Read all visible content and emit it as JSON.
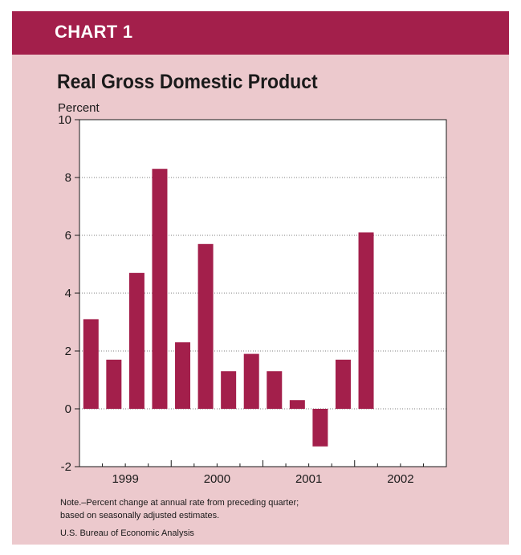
{
  "header": {
    "label": "CHART 1"
  },
  "colors": {
    "banner": "#a31f4b",
    "panel": "#ecc9cd",
    "bar": "#a31f4b"
  },
  "chart_data": {
    "type": "bar",
    "title": "Real Gross Domestic Product",
    "ylabel": "Percent",
    "xlabel": "",
    "ylim": [
      -2,
      10
    ],
    "yticks": [
      -2,
      0,
      2,
      4,
      6,
      8,
      10
    ],
    "grid": true,
    "year_labels": [
      "1999",
      "2000",
      "2001",
      "2002"
    ],
    "categories": [
      "1999 Q1",
      "1999 Q2",
      "1999 Q3",
      "1999 Q4",
      "2000 Q1",
      "2000 Q2",
      "2000 Q3",
      "2000 Q4",
      "2001 Q1",
      "2001 Q2",
      "2001 Q3",
      "2001 Q4",
      "2002 Q1",
      "2002 Q2",
      "2002 Q3",
      "2002 Q4"
    ],
    "values": [
      3.1,
      1.7,
      4.7,
      8.3,
      2.3,
      5.7,
      1.3,
      1.9,
      1.3,
      0.3,
      -1.3,
      1.7,
      6.1,
      null,
      null,
      null
    ]
  },
  "footer": {
    "note": "Note.–Percent change at annual rate from preceding quarter;\nbased on seasonally adjusted estimates.",
    "source": "U.S. Bureau of Economic Analysis"
  }
}
